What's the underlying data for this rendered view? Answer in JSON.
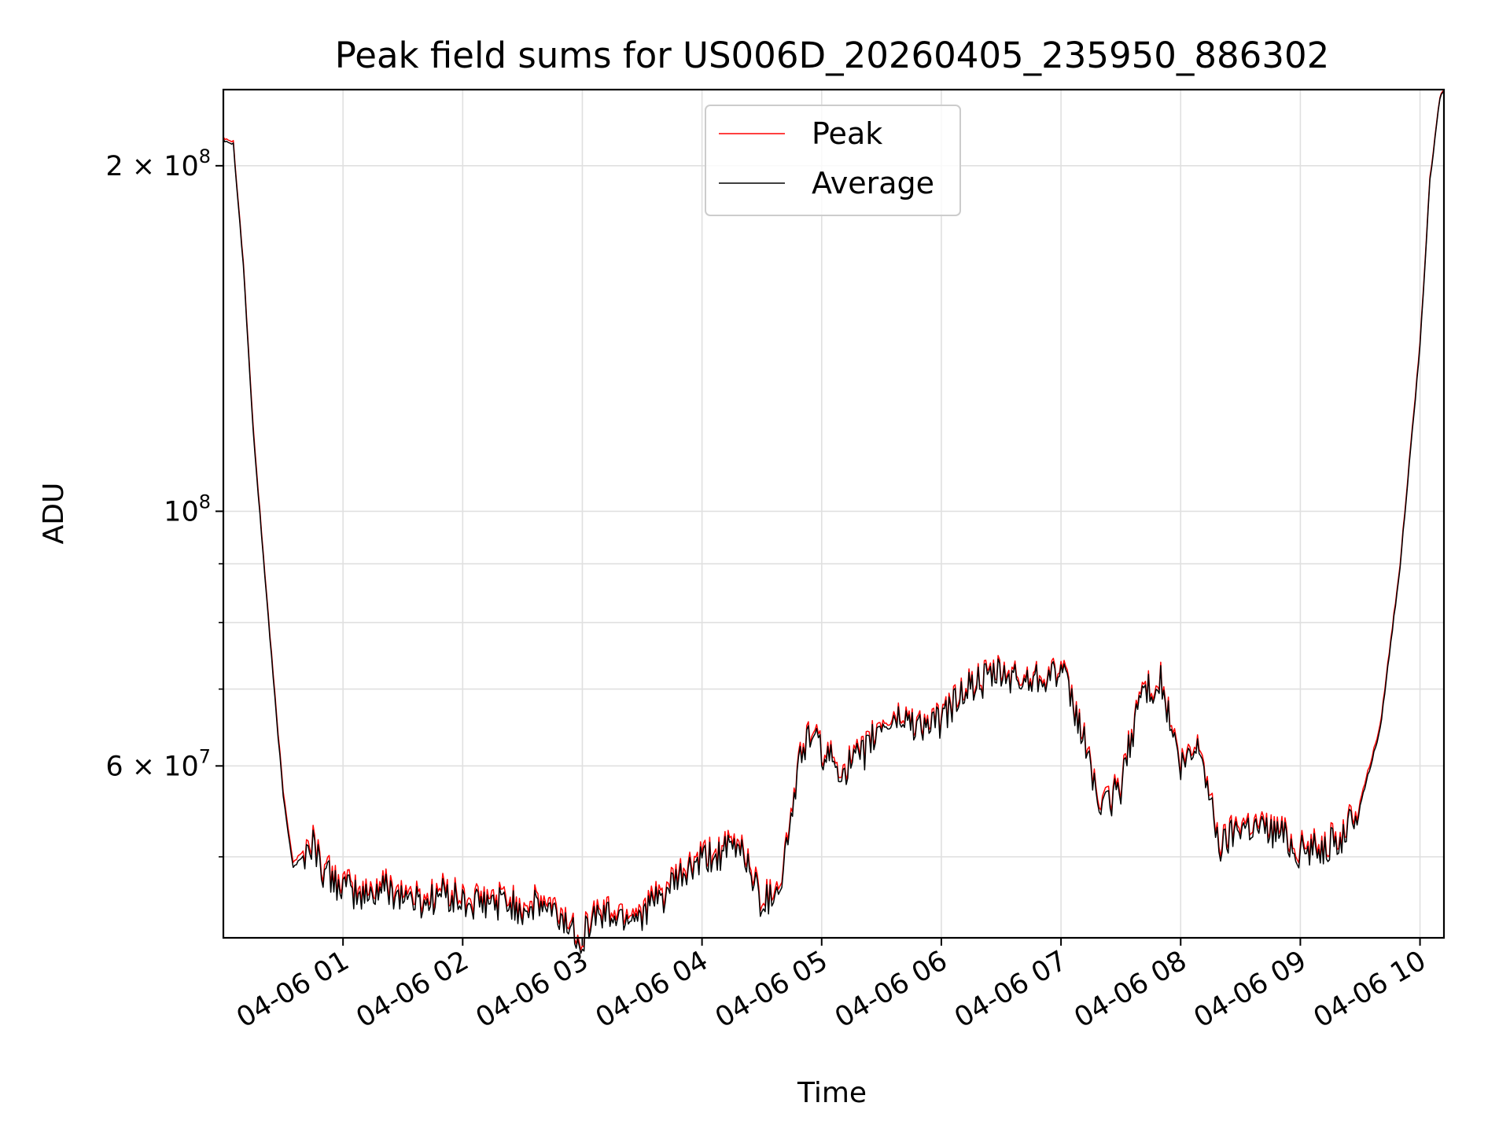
{
  "chart_data": {
    "type": "line",
    "title": "Peak field sums for US006D_20260405_235950_886302",
    "xlabel": "Time",
    "ylabel": "ADU",
    "y_scale": "log",
    "ylim": [
      42500000,
      233000000
    ],
    "xlim": [
      "2026-04-06 00:00",
      "2026-04-06 10:12"
    ],
    "x_ticks": [
      "04-06 01",
      "04-06 02",
      "04-06 03",
      "04-06 04",
      "04-06 05",
      "04-06 06",
      "04-06 07",
      "04-06 08",
      "04-06 09",
      "04-06 10"
    ],
    "y_ticks_major": [
      {
        "value": 100000000,
        "base": "10",
        "exp": "8",
        "coef": ""
      },
      {
        "value": 200000000,
        "base": "10",
        "exp": "8",
        "coef": "2"
      },
      {
        "value": 60000000,
        "base": "10",
        "exp": "7",
        "coef": "6"
      }
    ],
    "y_ticks_minor": [
      50000000,
      70000000,
      80000000,
      90000000
    ],
    "grid": true,
    "legend": {
      "position": "top-center",
      "entries": [
        "Peak",
        "Average"
      ]
    },
    "x_times": [
      "00:00",
      "00:05",
      "00:10",
      "00:15",
      "00:20",
      "00:25",
      "00:30",
      "00:35",
      "00:40",
      "00:45",
      "00:50",
      "01:00",
      "01:10",
      "01:20",
      "01:30",
      "01:40",
      "01:50",
      "02:00",
      "02:10",
      "02:20",
      "02:30",
      "02:40",
      "02:50",
      "03:00",
      "03:05",
      "03:10",
      "03:20",
      "03:30",
      "03:40",
      "03:50",
      "04:00",
      "04:10",
      "04:20",
      "04:30",
      "04:35",
      "04:40",
      "04:50",
      "04:55",
      "05:00",
      "05:10",
      "05:20",
      "05:30",
      "05:40",
      "05:50",
      "06:00",
      "06:10",
      "06:20",
      "06:30",
      "06:40",
      "06:50",
      "07:00",
      "07:10",
      "07:15",
      "07:20",
      "07:30",
      "07:40",
      "07:50",
      "08:00",
      "08:10",
      "08:15",
      "08:20",
      "08:30",
      "08:40",
      "08:50",
      "09:00",
      "09:10",
      "09:20",
      "09:30",
      "09:40",
      "09:50",
      "10:00",
      "10:05",
      "10:10",
      "10:12"
    ],
    "series": [
      {
        "name": "Peak",
        "color": "#ff0000",
        "values": [
          212000000,
          210000000,
          165000000,
          118000000,
          92000000,
          72000000,
          57000000,
          49500000,
          50500000,
          52000000,
          49000000,
          47500000,
          46500000,
          47500000,
          46800000,
          46000000,
          47000000,
          46000000,
          45800000,
          46200000,
          45500000,
          45800000,
          44500000,
          42800000,
          44800000,
          45000000,
          44800000,
          45200000,
          46500000,
          48500000,
          50000000,
          50800000,
          51500000,
          46000000,
          46800000,
          48500000,
          62500000,
          64500000,
          62000000,
          60000000,
          61500000,
          65500000,
          66500000,
          65500000,
          66000000,
          70000000,
          71500000,
          72500000,
          71500000,
          72500000,
          73000000,
          65000000,
          60500000,
          55000000,
          58000000,
          70000000,
          71500000,
          60000000,
          63000000,
          56000000,
          51500000,
          54000000,
          53500000,
          53000000,
          51000000,
          51500000,
          52000000,
          56000000,
          65000000,
          90000000,
          140000000,
          195000000,
          230000000,
          233000000
        ]
      },
      {
        "name": "Average",
        "color": "#000000",
        "values": [
          211000000,
          209000000,
          164000000,
          117000000,
          91500000,
          71500000,
          56500000,
          49000000,
          50000000,
          51500000,
          48500000,
          47000000,
          46000000,
          47000000,
          46300000,
          45500000,
          46500000,
          45500000,
          45300000,
          45700000,
          45000000,
          45300000,
          44000000,
          42500000,
          44300000,
          44500000,
          44300000,
          44700000,
          46000000,
          48000000,
          49500000,
          50300000,
          51000000,
          45500000,
          46300000,
          48000000,
          62000000,
          64000000,
          61500000,
          59500000,
          61000000,
          65000000,
          66000000,
          65000000,
          65500000,
          69500000,
          71000000,
          72000000,
          71000000,
          72000000,
          72500000,
          64500000,
          60000000,
          54500000,
          57500000,
          69500000,
          71000000,
          59500000,
          62500000,
          55500000,
          51000000,
          53500000,
          53000000,
          52500000,
          50500000,
          51000000,
          51500000,
          55500000,
          64500000,
          89500000,
          139000000,
          194000000,
          229500000,
          232500000
        ]
      }
    ]
  }
}
